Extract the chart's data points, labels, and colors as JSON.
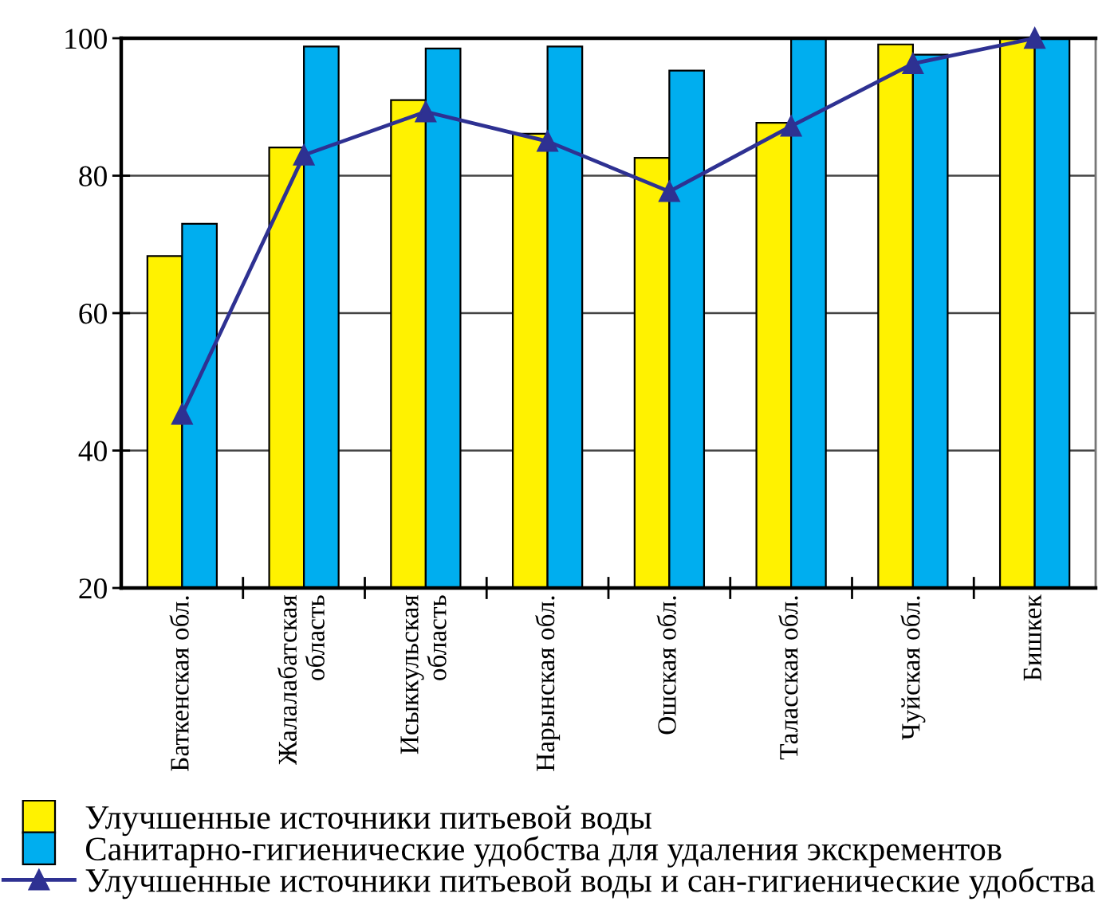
{
  "chart_data": {
    "type": "bar",
    "categories": [
      "Баткенская обл.",
      "Жалалабатская область",
      "Исыккульская область",
      "Нарынская обл.",
      "Ошская обл.",
      "Таласская обл.",
      "Чуйская обл.",
      "Бишкек"
    ],
    "series": [
      {
        "name": "Улучшенные источники питьевой воды",
        "color": "#fff200",
        "values": [
          68.3,
          84.1,
          91.0,
          86.1,
          82.6,
          87.7,
          99.1,
          100
        ]
      },
      {
        "name": "Санитарно-гигиенические удобства для удаления экскрементов",
        "color": "#00aeef",
        "values": [
          73.0,
          98.8,
          98.5,
          98.8,
          95.3,
          100,
          97.6,
          100
        ]
      },
      {
        "name": "Улучшенные источники питьевой воды и сан-гигиенические удобства",
        "color": "#2e3192",
        "type": "line",
        "marker": "triangle",
        "line_style": "solid",
        "values": [
          45.3,
          83.0,
          89.3,
          85.0,
          77.7,
          87.2,
          96.3,
          100
        ]
      }
    ],
    "ylim": [
      20,
      100
    ],
    "yticks": [
      20,
      40,
      60,
      80,
      100
    ],
    "grid": "y",
    "legend": "bottom"
  }
}
